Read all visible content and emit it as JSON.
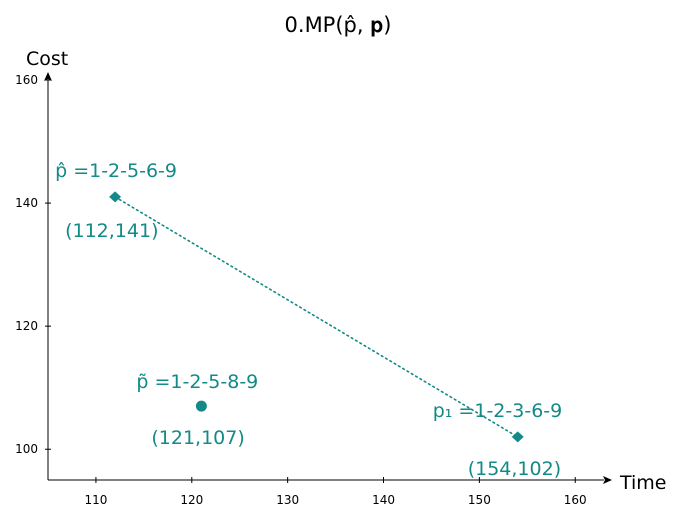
{
  "chart_data": {
    "type": "scatter",
    "title": "0.MP(p̂, 𝐩)",
    "xlabel": "Time",
    "ylabel": "Cost",
    "xlim": [
      105,
      163
    ],
    "ylim": [
      95,
      160
    ],
    "xticks": [
      110,
      120,
      130,
      140,
      150,
      160
    ],
    "yticks": [
      100,
      120,
      140,
      160
    ],
    "grid": false,
    "color": "#138a87",
    "points": [
      {
        "id": "p-hat",
        "name": "p̂ =1-2-5-6-9",
        "coord": "(112,141)",
        "x": 112,
        "y": 141,
        "marker": "diamond"
      },
      {
        "id": "p-tilde",
        "name": "p̃ =1-2-5-8-9",
        "coord": "(121,107)",
        "x": 121,
        "y": 107,
        "marker": "circle"
      },
      {
        "id": "p1",
        "name": "p₁ =1-2-3-6-9",
        "coord": "(154,102)",
        "x": 154,
        "y": 102,
        "marker": "diamond"
      }
    ],
    "line": {
      "from": "p-hat",
      "to": "p1",
      "style": "dotted"
    }
  }
}
